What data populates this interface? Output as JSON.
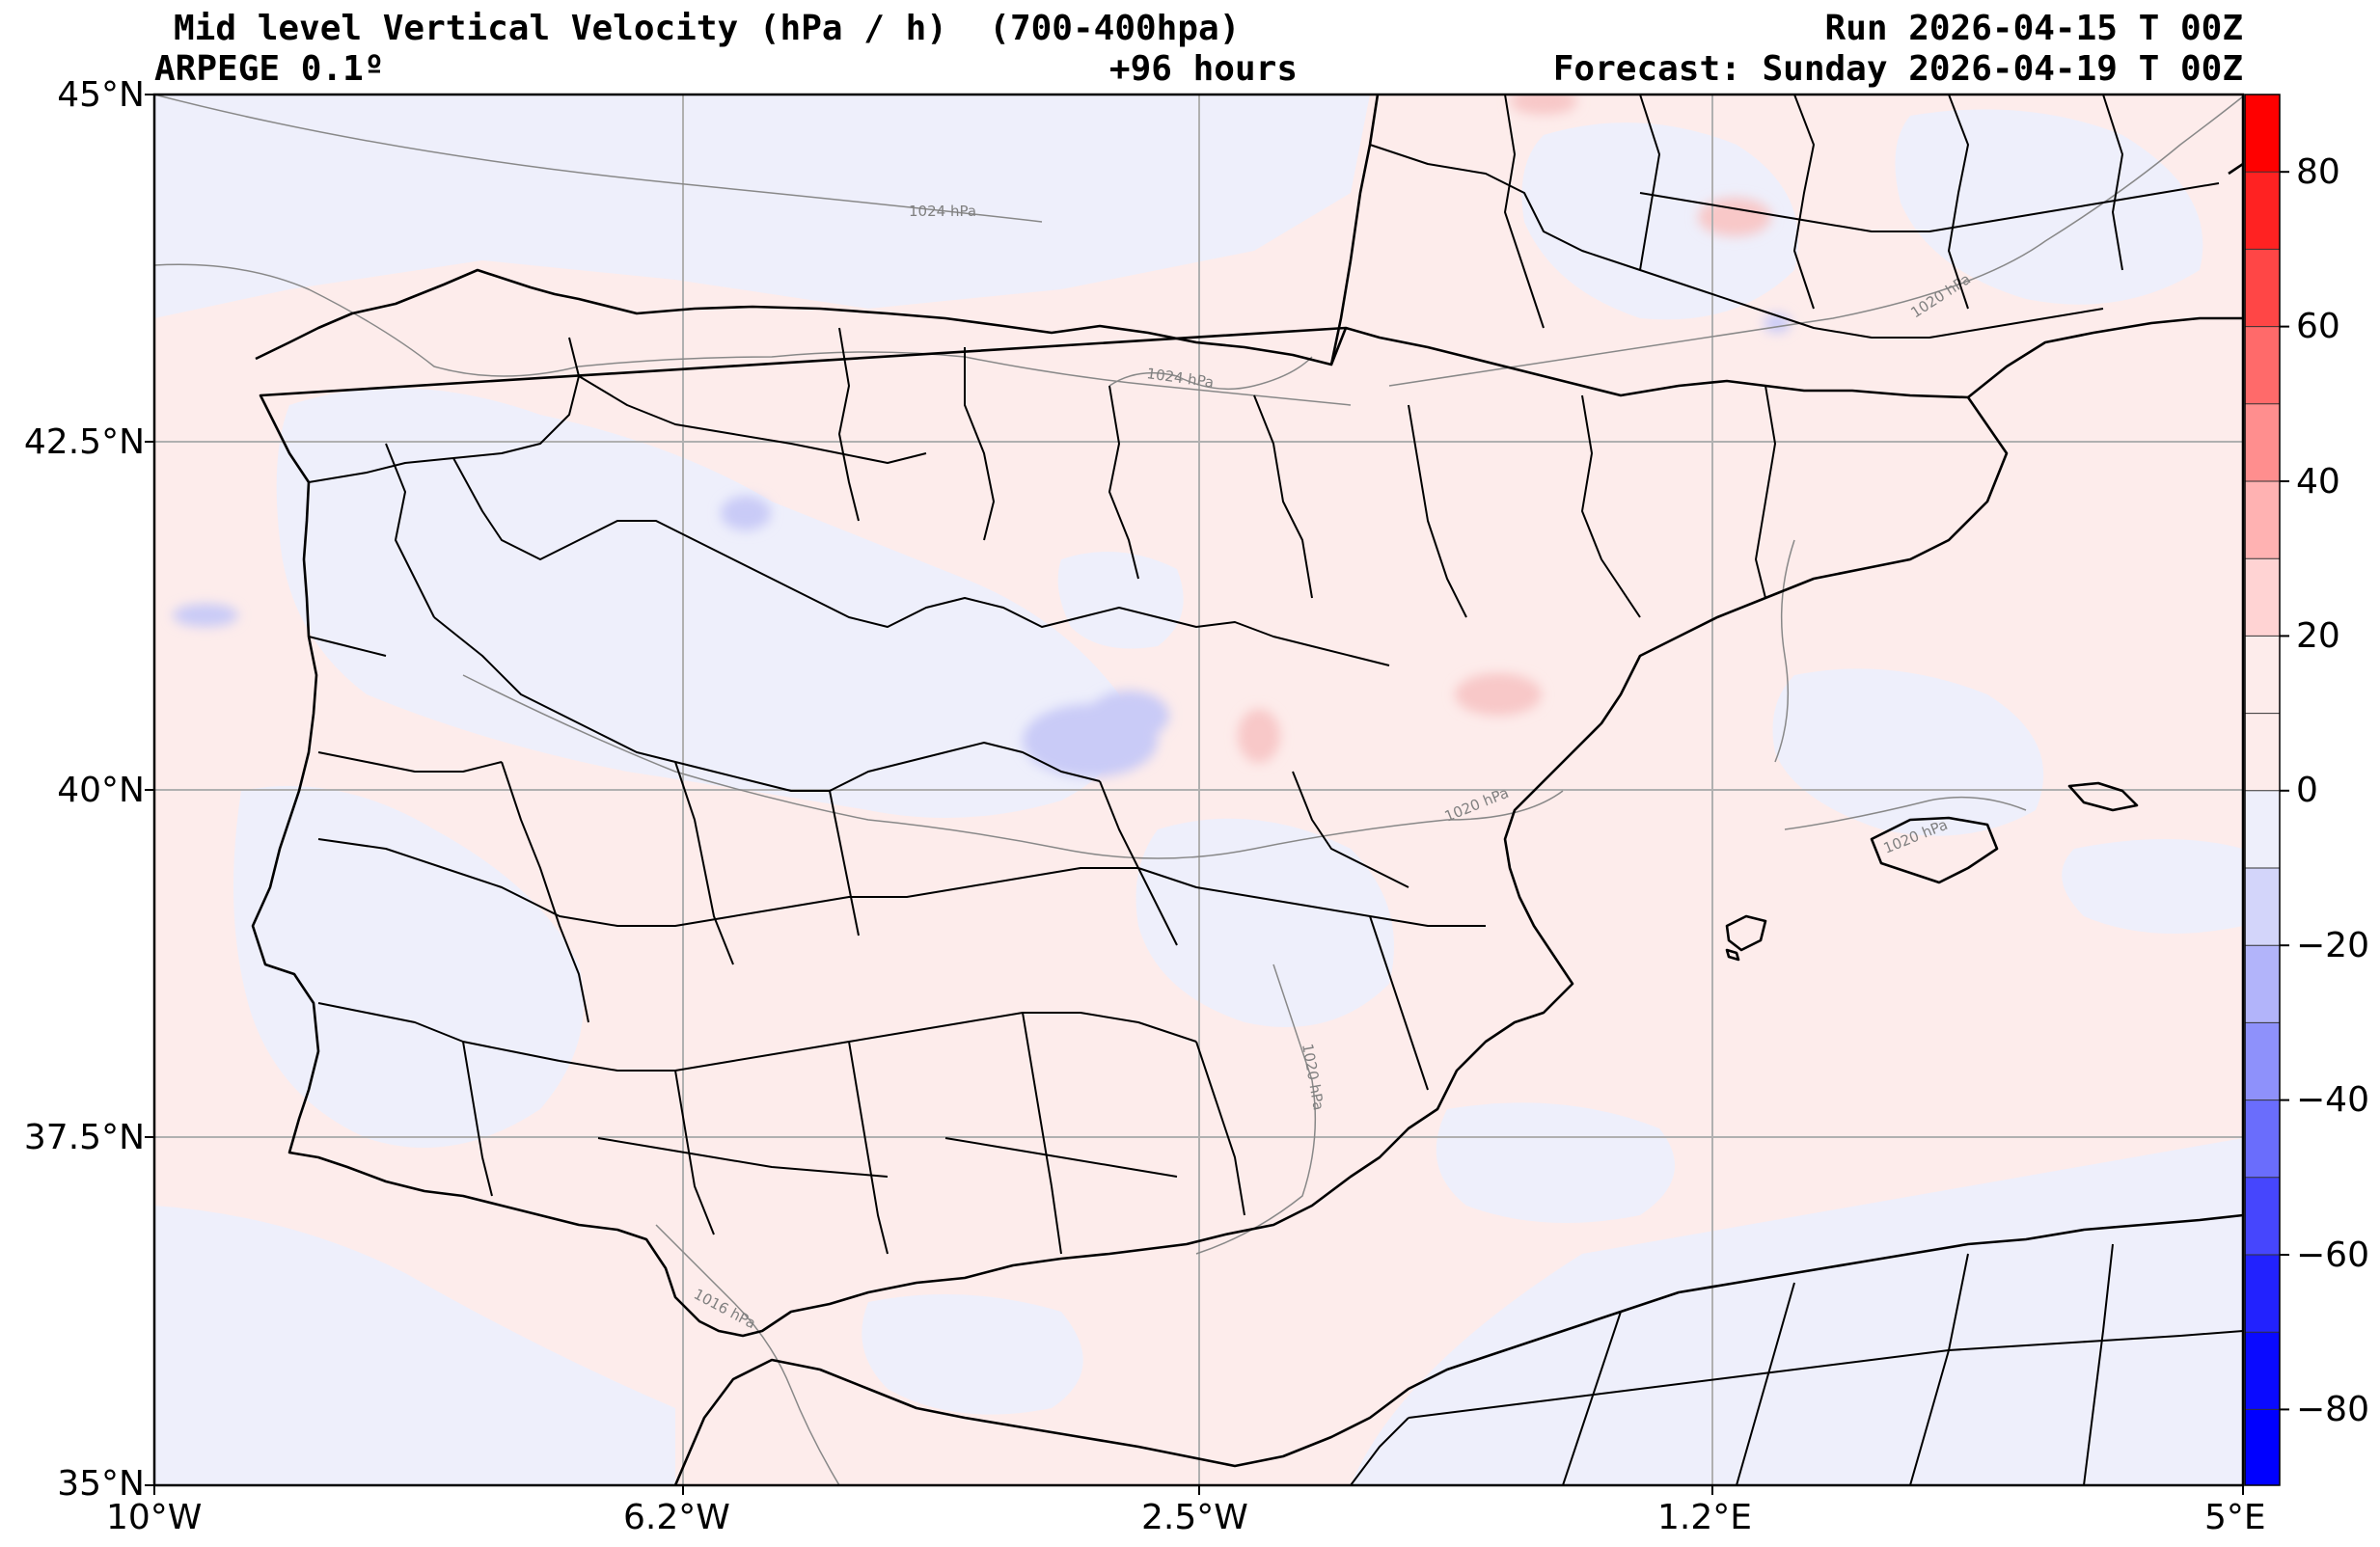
{
  "header": {
    "title": "Mid level Vertical Velocity (hPa / h)  (700-400hpa)",
    "model": "ARPEGE 0.1º",
    "lead_time": "+96 hours",
    "run": "Run 2026-04-15 T 00Z",
    "forecast": "Forecast: Sunday 2026-04-19 T 00Z"
  },
  "axes": {
    "lat_ticks": [
      "45°N",
      "42.5°N",
      "40°N",
      "37.5°N",
      "35°N"
    ],
    "lon_ticks": [
      "10°W",
      "6.2°W",
      "2.5°W",
      "1.2°E",
      "5°E"
    ]
  },
  "colorbar": {
    "tick_labels": [
      "80",
      "60",
      "40",
      "20",
      "0",
      "−20",
      "−40",
      "−60",
      "−80"
    ],
    "range": [
      -90,
      90
    ],
    "colors": {
      "strong_positive": "#ff0000",
      "weak_positive": "#fdeceb",
      "weak_negative": "#eeeffb",
      "strong_negative": "#0000ff"
    }
  },
  "isobars": {
    "labels": [
      "1024 hPa",
      "1024 hPa",
      "1020 hPa",
      "1020 hPa",
      "1020 hPa",
      "1020 hPa",
      "1016 hPa"
    ]
  }
}
